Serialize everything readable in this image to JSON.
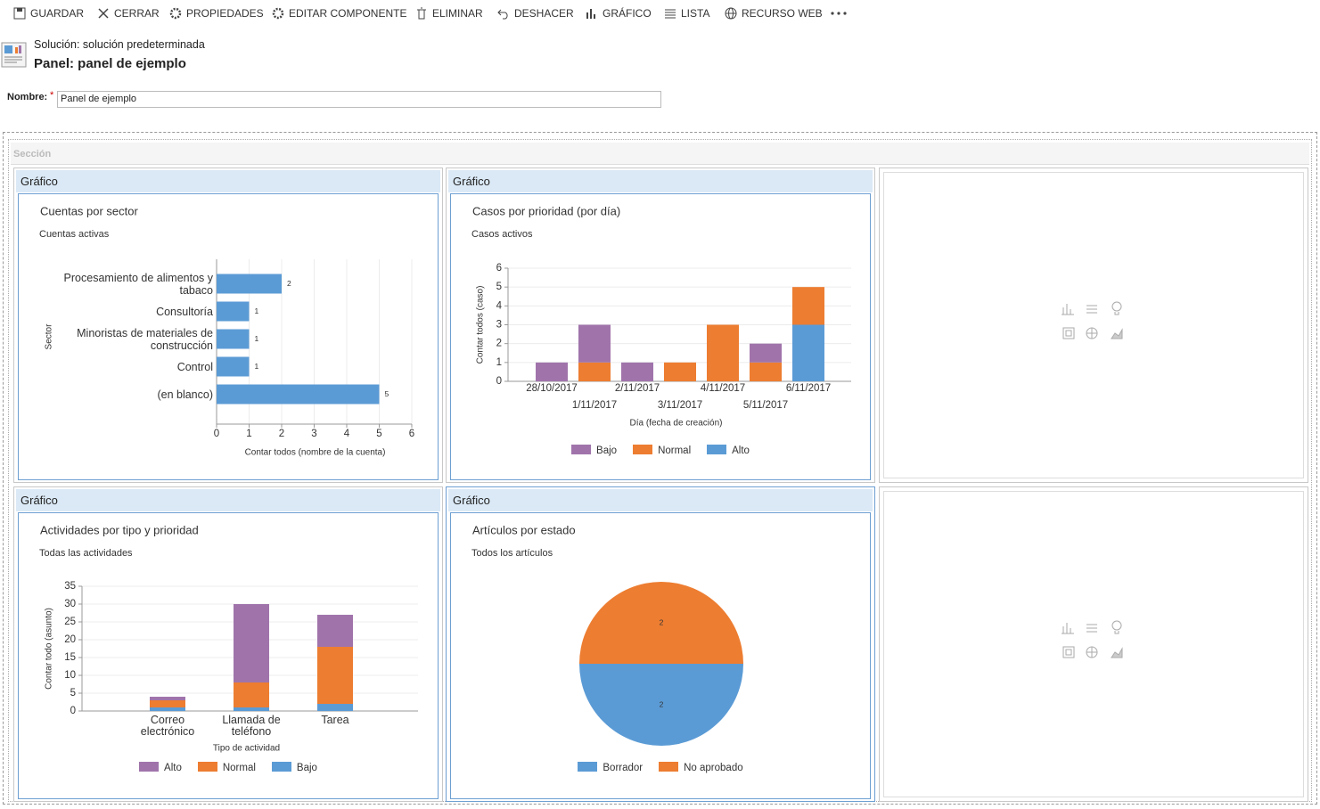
{
  "toolbar": {
    "buttons": [
      "GUARDAR",
      "CERRAR",
      "PROPIEDADES",
      "EDITAR COMPONENTE",
      "ELIMINAR",
      "DESHACER",
      "GRÁFICO",
      "LISTA",
      "RECURSO WEB"
    ]
  },
  "header": {
    "solution": "Solución: solución predeterminada",
    "title": "Panel: panel de ejemplo"
  },
  "form": {
    "name_label": "Nombre:",
    "required_mark": "*",
    "name_value": "Panel de ejemplo"
  },
  "section": {
    "label": "Sección"
  },
  "chart_data": [
    {
      "panel_title": "Gráfico",
      "type": "barh",
      "title": "Cuentas por sector",
      "subtitle": "Cuentas activas",
      "categories": [
        "Procesamiento de alimentos y tabaco",
        "Consultoría",
        "Minoristas de materiales de construcción",
        "Control",
        "(en blanco)"
      ],
      "values": [
        2,
        1,
        1,
        1,
        5
      ],
      "color": "#5b9bd5",
      "xlabel": "Contar todos (nombre de la cuenta)",
      "ylabel": "Sector",
      "xlim": [
        0,
        6
      ],
      "xticks": [
        0,
        1,
        2,
        3,
        4,
        5,
        6
      ],
      "grid": true
    },
    {
      "panel_title": "Gráfico",
      "type": "stacked_bar",
      "title": "Casos por prioridad (por día)",
      "subtitle": "Casos activos",
      "categories": [
        "28/10/2017",
        "1/11/2017",
        "2/11/2017",
        "3/11/2017",
        "4/11/2017",
        "5/11/2017",
        "6/11/2017"
      ],
      "series": [
        {
          "name": "Bajo",
          "color": "#a074ab",
          "values": [
            1,
            2,
            1,
            0,
            0,
            1,
            0
          ]
        },
        {
          "name": "Normal",
          "color": "#ed7d31",
          "values": [
            0,
            1,
            0,
            1,
            3,
            1,
            2
          ]
        },
        {
          "name": "Alto",
          "color": "#5b9bd5",
          "values": [
            0,
            0,
            0,
            0,
            0,
            0,
            3
          ]
        }
      ],
      "xlabel": "Día (fecha de creación)",
      "ylabel": "Contar todos (caso)",
      "ylim": [
        0,
        6
      ],
      "yticks": [
        0,
        1,
        2,
        3,
        4,
        5,
        6
      ],
      "grid": true,
      "legend": "bottom"
    },
    {
      "panel_title": "Gráfico",
      "type": "stacked_bar",
      "title": "Actividades por tipo y prioridad",
      "subtitle": "Todas las actividades",
      "categories": [
        "Correo electrónico",
        "Llamada de teléfono",
        "Tarea"
      ],
      "series": [
        {
          "name": "Alto",
          "color": "#a074ab",
          "values": [
            1,
            22,
            9
          ]
        },
        {
          "name": "Normal",
          "color": "#ed7d31",
          "values": [
            2,
            7,
            16
          ]
        },
        {
          "name": "Bajo",
          "color": "#5b9bd5",
          "values": [
            1,
            1,
            2
          ]
        }
      ],
      "xlabel": "Tipo de actividad",
      "ylabel": "Contar todo (asunto)",
      "ylim": [
        0,
        35
      ],
      "yticks": [
        0,
        5,
        10,
        15,
        20,
        25,
        30,
        35
      ],
      "grid": true,
      "legend": "bottom"
    },
    {
      "panel_title": "Gráfico",
      "type": "pie",
      "title": "Artículos por estado",
      "subtitle": "Todos los artículos",
      "categories": [
        "Borrador",
        "No aprobado"
      ],
      "values": [
        2,
        2
      ],
      "colors": [
        "#5b9bd5",
        "#ed7d31"
      ],
      "legend": "bottom"
    }
  ]
}
